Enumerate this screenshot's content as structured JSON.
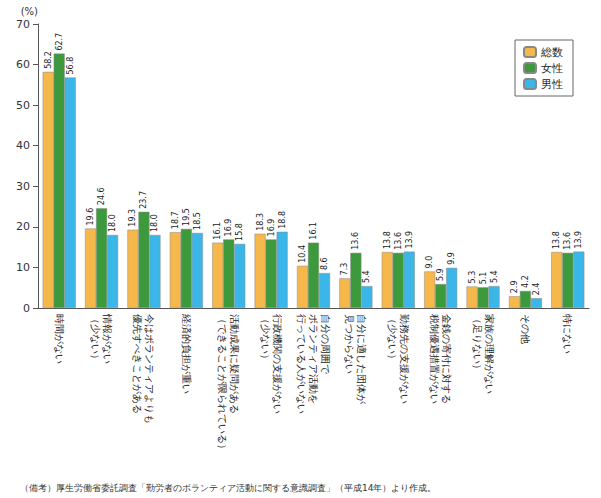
{
  "chart_data": {
    "type": "bar",
    "ylabel": "(%)",
    "categories": [
      "時間がない",
      "情報がない\n（少ない）",
      "今はボランティアよりも\n優先すべきことがある",
      "経済的負担が重い",
      "活動成果に疑問がある\n（できることが限られている）",
      "行政機関の支援がない\n（少ない）",
      "自分の周囲で\nボランティア活動を\n行っている人がいない",
      "自分に適した団体が\n見つからない",
      "勤務先の支援がない\n（少ない）",
      "金銭の寄付に対する\n税制優遇措置がない",
      "家族の理解がない\n（足りない）",
      "その他",
      "特にない"
    ],
    "series": [
      {
        "name": "総数",
        "color": "#f7b84b",
        "values": [
          58.2,
          19.6,
          19.3,
          18.7,
          16.1,
          18.3,
          10.4,
          7.3,
          13.8,
          9.0,
          5.3,
          2.9,
          13.8
        ],
        "value_labels": [
          "58.2",
          "19.6",
          "19.3",
          "18.7",
          "16.1",
          "18.3",
          "10.4",
          "7.3",
          "13.8",
          "9.0",
          "5.3",
          "2.9",
          "13.8"
        ]
      },
      {
        "name": "女性",
        "color": "#3c9a3c",
        "values": [
          62.7,
          24.6,
          23.7,
          19.5,
          16.9,
          16.9,
          16.1,
          13.6,
          13.6,
          5.9,
          5.1,
          4.2,
          13.6
        ]
      },
      {
        "name": "男性",
        "color": "#3ab7e8",
        "values": [
          56.8,
          18.0,
          18.0,
          18.5,
          15.8,
          18.8,
          8.6,
          5.4,
          13.9,
          9.9,
          5.4,
          2.4,
          13.9
        ],
        "value_labels": [
          "56.8",
          "18.0",
          "18.0",
          "18.5",
          "15.8",
          "18.8",
          "8.6",
          "5.4",
          "13.9",
          "9.9",
          "5.4",
          "2.4",
          "13.9"
        ]
      }
    ],
    "ylim": [
      0,
      70
    ],
    "yticks": [
      0,
      10,
      20,
      30,
      40,
      50,
      60,
      70
    ],
    "grid": false,
    "legend": "upper right",
    "data_labels": true,
    "annotations": [
      "（備考）厚生労働省委託調査「勤労者のボランティア活動に関する意識調査」（平成14年）より作成。"
    ]
  }
}
